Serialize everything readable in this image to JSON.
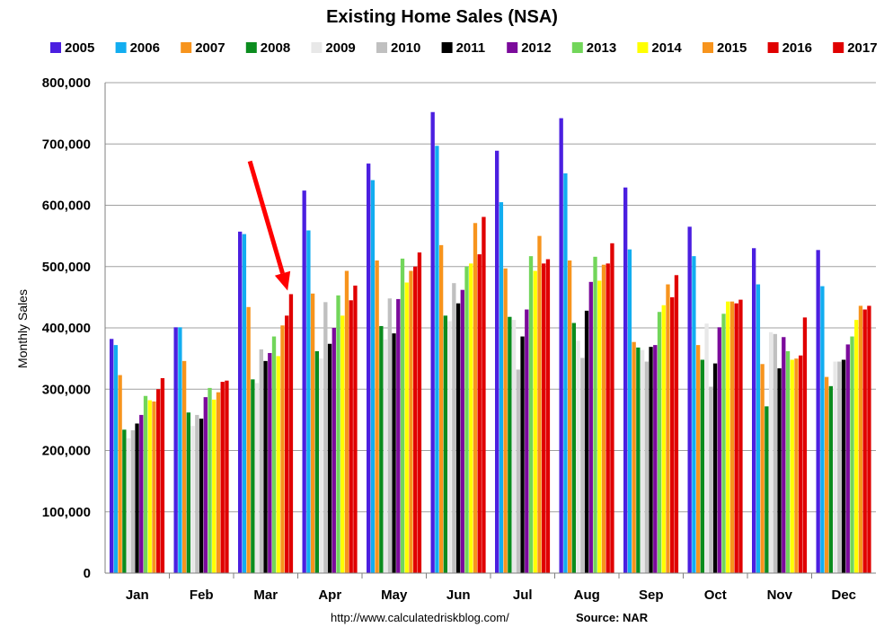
{
  "chart_data": {
    "type": "bar",
    "title": "Existing Home Sales (NSA)",
    "xlabel": "",
    "ylabel": "Monthly Sales",
    "ylim": [
      0,
      800000
    ],
    "yticks": [
      "0",
      "100,000",
      "200,000",
      "300,000",
      "400,000",
      "500,000",
      "600,000",
      "700,000",
      "800,000"
    ],
    "grid": true,
    "legend_position": "top",
    "categories": [
      "Jan",
      "Feb",
      "Mar",
      "Apr",
      "May",
      "Jun",
      "Jul",
      "Aug",
      "Sep",
      "Oct",
      "Nov",
      "Dec"
    ],
    "series": [
      {
        "name": "2005",
        "color": "#4b1fe0",
        "values": [
          382000,
          401000,
          557000,
          624000,
          668000,
          752000,
          689000,
          742000,
          629000,
          565000,
          530000,
          527000
        ]
      },
      {
        "name": "2006",
        "color": "#12adf0",
        "values": [
          372000,
          401000,
          553000,
          559000,
          641000,
          697000,
          605000,
          652000,
          528000,
          517000,
          471000,
          468000
        ]
      },
      {
        "name": "2007",
        "color": "#f7941d",
        "values": [
          323000,
          346000,
          434000,
          456000,
          510000,
          535000,
          497000,
          510000,
          377000,
          372000,
          341000,
          320000
        ]
      },
      {
        "name": "2008",
        "color": "#0b8c1e",
        "values": [
          234000,
          262000,
          316000,
          362000,
          403000,
          420000,
          418000,
          408000,
          368000,
          348000,
          272000,
          305000
        ]
      },
      {
        "name": "2009",
        "color": "#e8e8e8",
        "values": [
          220000,
          240000,
          310000,
          350000,
          381000,
          411000,
          413000,
          379000,
          364000,
          407000,
          393000,
          345000
        ]
      },
      {
        "name": "2010",
        "color": "#c0c0c0",
        "values": [
          233000,
          258000,
          365000,
          442000,
          448000,
          473000,
          332000,
          351000,
          345000,
          304000,
          390000,
          345000
        ]
      },
      {
        "name": "2011",
        "color": "#000000",
        "values": [
          244000,
          252000,
          346000,
          374000,
          391000,
          440000,
          386000,
          428000,
          369000,
          342000,
          334000,
          348000
        ]
      },
      {
        "name": "2012",
        "color": "#7b0a9b",
        "values": [
          258000,
          287000,
          359000,
          400000,
          447000,
          462000,
          430000,
          475000,
          372000,
          401000,
          385000,
          373000
        ]
      },
      {
        "name": "2013",
        "color": "#72d65a",
        "values": [
          289000,
          302000,
          386000,
          453000,
          513000,
          500000,
          517000,
          516000,
          426000,
          423000,
          362000,
          386000
        ]
      },
      {
        "name": "2014",
        "color": "#ffff00",
        "values": [
          282000,
          283000,
          354000,
          420000,
          474000,
          505000,
          493000,
          477000,
          437000,
          443000,
          348000,
          413000
        ]
      },
      {
        "name": "2015",
        "color": "#f7941d",
        "values": [
          280000,
          295000,
          404000,
          493000,
          493000,
          571000,
          550000,
          503000,
          471000,
          443000,
          350000,
          436000
        ]
      },
      {
        "name": "2016",
        "color": "#e00000",
        "values": [
          300000,
          312000,
          420000,
          445000,
          500000,
          520000,
          505000,
          505000,
          450000,
          440000,
          355000,
          430000
        ]
      },
      {
        "name": "2017",
        "color": "#e00000",
        "values": [
          318000,
          314000,
          455000,
          469000,
          523000,
          581000,
          512000,
          538000,
          486000,
          446000,
          417000,
          436000
        ]
      }
    ],
    "annotations": [
      {
        "type": "arrow",
        "target_category": "Mar",
        "target_series": "2017",
        "color": "#ff0000"
      }
    ]
  },
  "footer": {
    "url": "http://www.calculatedriskblog.com/",
    "source": "Source: NAR"
  }
}
